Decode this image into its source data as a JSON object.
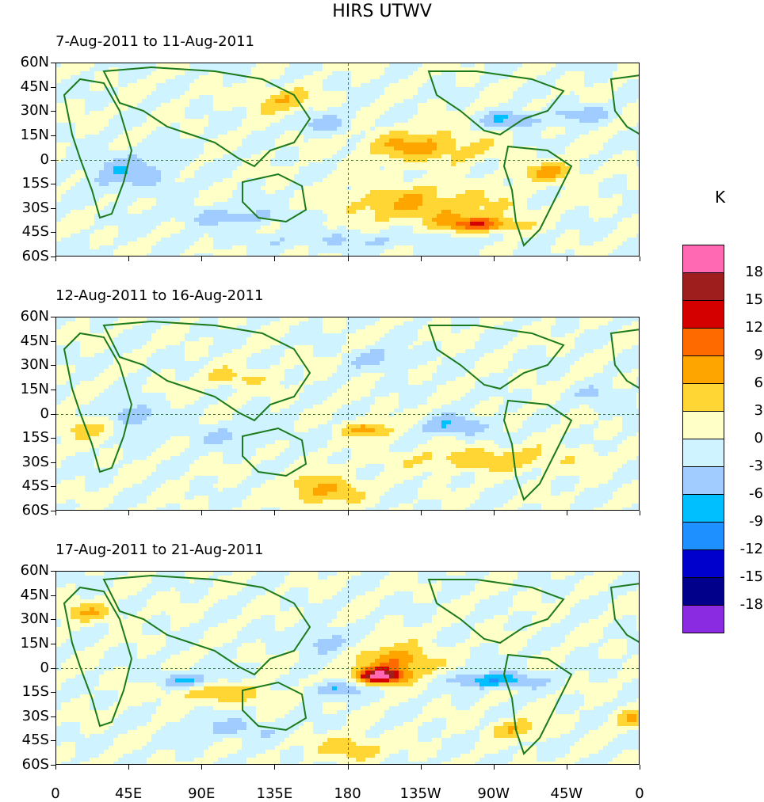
{
  "title": "HIRS UTWV",
  "panels": [
    {
      "label": "7-Aug-2011 to 11-Aug-2011"
    },
    {
      "label": "12-Aug-2011 to 16-Aug-2011"
    },
    {
      "label": "17-Aug-2011 to 21-Aug-2011"
    }
  ],
  "lat_labels": [
    "60N",
    "45N",
    "30N",
    "15N",
    "0",
    "15S",
    "30S",
    "45S",
    "60S"
  ],
  "lon_labels": [
    "0",
    "45E",
    "90E",
    "135E",
    "180",
    "135W",
    "90W",
    "45W",
    "0"
  ],
  "colorbar": {
    "unit": "K",
    "levels": [
      "18",
      "15",
      "12",
      "9",
      "6",
      "3",
      "0",
      "-3",
      "-6",
      "-9",
      "-12",
      "-15",
      "-18"
    ],
    "colors": [
      "#ff69b4",
      "#9e1e1e",
      "#d40000",
      "#ff6a00",
      "#ffa500",
      "#ffd633",
      "#ffffc8",
      "#d0f4ff",
      "#a0ccff",
      "#00bfff",
      "#1e90ff",
      "#0000cd",
      "#00008b",
      "#8a2be2"
    ]
  },
  "chart_data": {
    "type": "heatmap",
    "title": "HIRS UTWV",
    "unit": "K",
    "x_range": [
      0,
      360
    ],
    "y_range": [
      -60,
      60
    ],
    "xlabel": "",
    "ylabel": ""
  }
}
